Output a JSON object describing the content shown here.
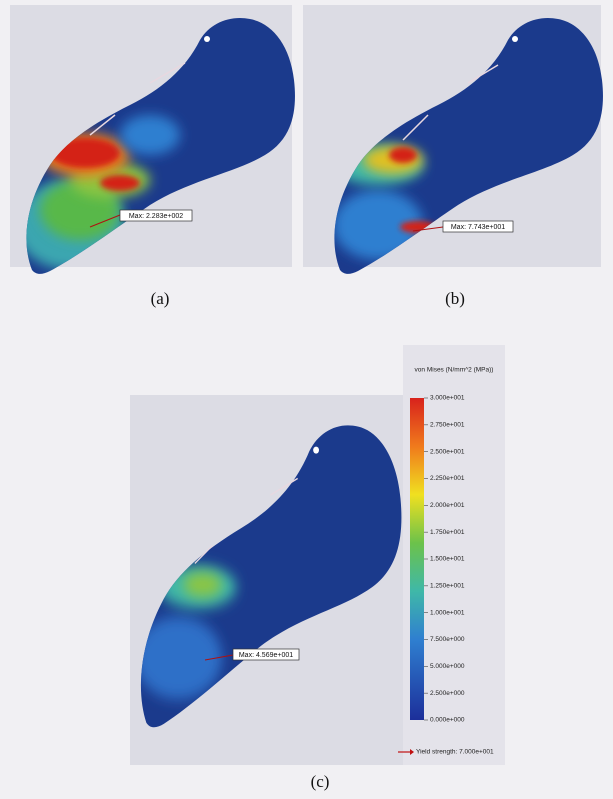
{
  "panels": [
    {
      "label": "(a)",
      "max_label": "Max: 2.283e+002"
    },
    {
      "label": "(b)",
      "max_label": "Max: 7.743e+001"
    },
    {
      "label": "(c)",
      "max_label": "Max: 4.569e+001"
    }
  ],
  "legend": {
    "title": "von Mises (N/mm^2 (MPa))",
    "ticks": [
      "3.000e+001",
      "2.750e+001",
      "2.500e+001",
      "2.250e+001",
      "2.000e+001",
      "1.750e+001",
      "1.500e+001",
      "1.250e+001",
      "1.000e+001",
      "7.500e+000",
      "5.000e+000",
      "2.500e+000",
      "0.000e+000"
    ],
    "yield": "Yield strength: 7.000e+001"
  }
}
